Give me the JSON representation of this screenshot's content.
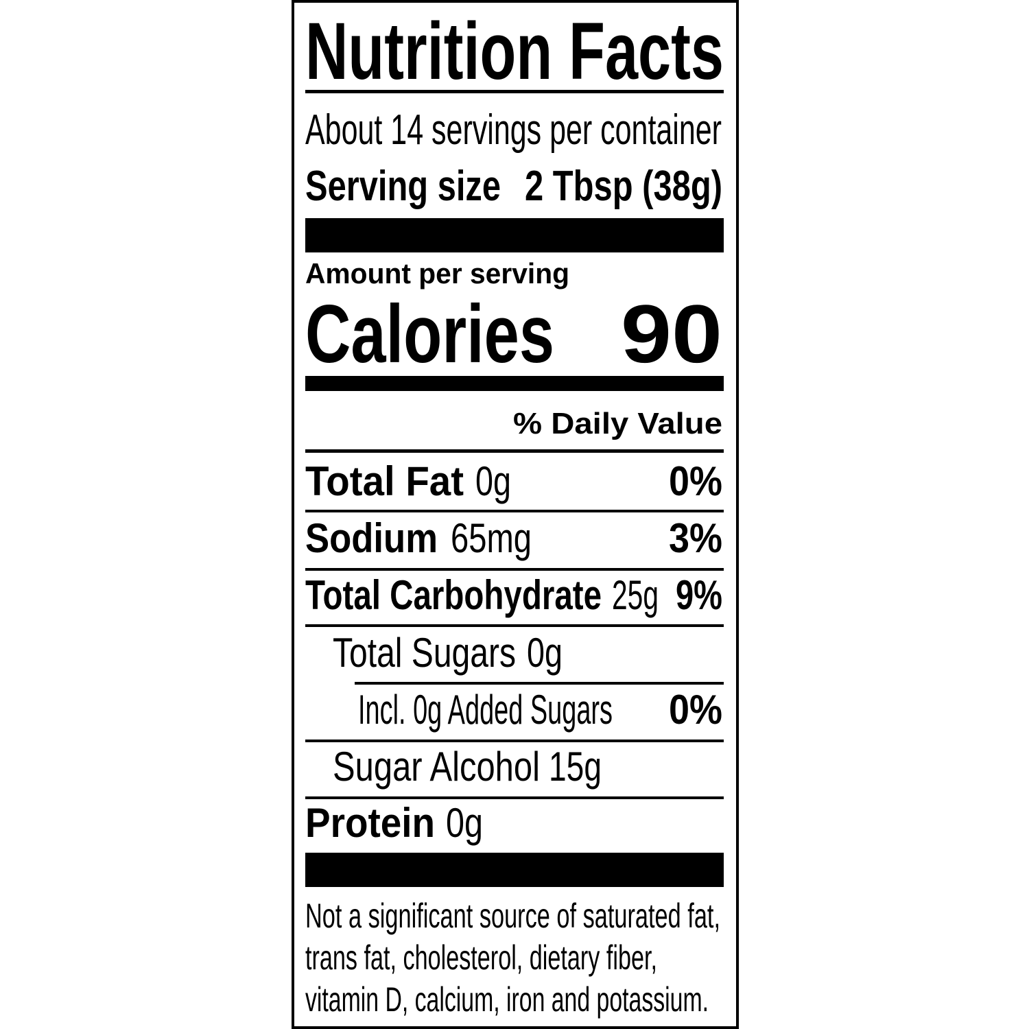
{
  "title": "Nutrition Facts",
  "servings": "About 14 servings per container",
  "serving_size": {
    "label": "Serving size",
    "value": "2 Tbsp (38g)"
  },
  "amount_per_serving": "Amount per serving",
  "calories": {
    "label": "Calories",
    "value": "90"
  },
  "daily_value_header": "% Daily Value",
  "rows": [
    {
      "name": "Total Fat",
      "amount": "0g",
      "dv": "0%"
    },
    {
      "name": "Sodium",
      "amount": "65mg",
      "dv": "3%"
    },
    {
      "name": "Total Carbohydrate",
      "amount": "25g",
      "dv": "9%"
    },
    {
      "name": "Total Sugars",
      "amount": "0g"
    },
    {
      "name": "Incl. 0g Added Sugars",
      "dv": "0%"
    },
    {
      "name": "Sugar Alcohol",
      "amount": "15g"
    },
    {
      "name": "Protein",
      "amount": "0g"
    }
  ],
  "footnote": [
    "Not a significant source of saturated fat,",
    "trans fat, cholesterol, dietary fiber,",
    "vitamin D, calcium, iron and potassium."
  ]
}
